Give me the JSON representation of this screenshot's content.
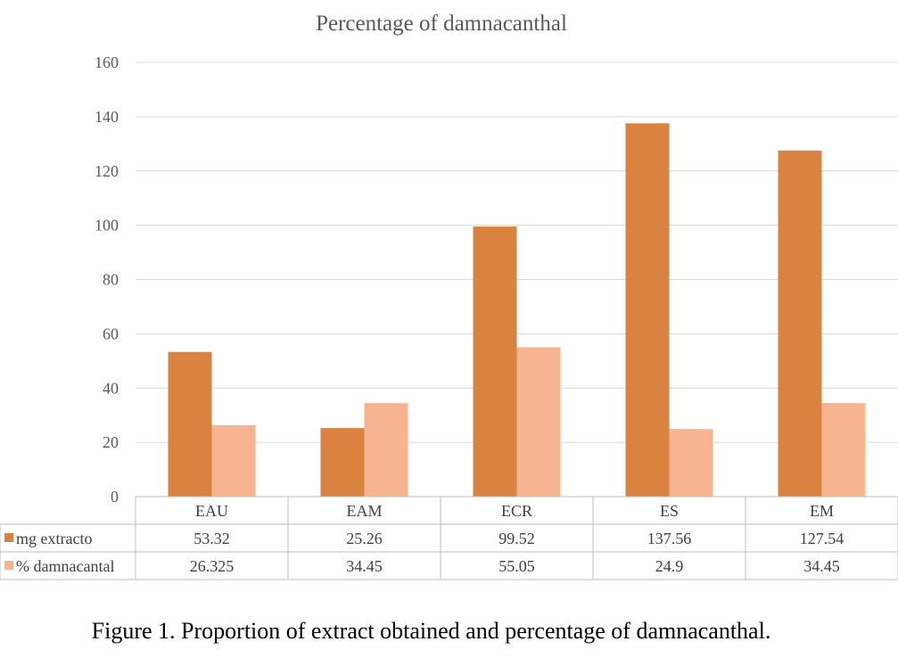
{
  "chart_data": {
    "type": "bar",
    "title": "Percentage of damnacanthal",
    "categories": [
      "EAU",
      "EAM",
      "ECR",
      "ES",
      "EM"
    ],
    "series": [
      {
        "name": "mg extracto",
        "values": [
          53.32,
          25.26,
          99.52,
          137.56,
          127.54
        ],
        "value_labels": [
          "53.32",
          "25.26",
          "99.52",
          "137.56",
          "127.54"
        ],
        "color": "#DA823F"
      },
      {
        "name": "% damnacantal",
        "values": [
          26.325,
          34.45,
          55.05,
          24.9,
          34.45
        ],
        "value_labels": [
          "26.325",
          "34.45",
          "55.05",
          "24.9",
          "34.45"
        ],
        "color": "#F8B491"
      }
    ],
    "ylim": [
      0,
      160
    ],
    "yticks": [
      0,
      20,
      40,
      60,
      80,
      100,
      120,
      140,
      160
    ],
    "grid": true,
    "legend": "data-table-left",
    "xlabel": "",
    "ylabel": ""
  },
  "colors": {
    "grid": "#D9D9D9",
    "table_border": "#BFBFBF",
    "text": "#404040"
  },
  "caption": "Figure 1. Proportion of extract obtained and percentage of damnacanthal."
}
